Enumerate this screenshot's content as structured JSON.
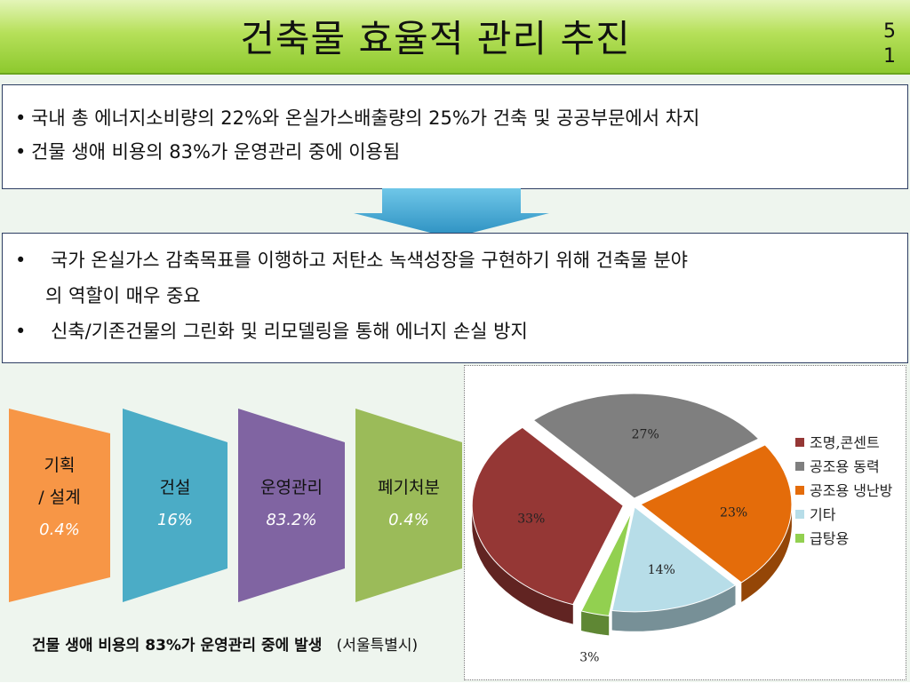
{
  "slide": {
    "title": "건축물 효율적 관리 추진",
    "page_number": "51"
  },
  "box1": {
    "lines": [
      "국내 총 에너지소비량의 22%와 온실가스배출량의 25%가 건축 및 공공부문에서 차지",
      "건물 생애 비용의 83%가 운영관리 중에 이용됨"
    ]
  },
  "box2": {
    "line1": "국가 온실가스 감축목표를 이행하고  저탄소 녹색성장을 구현하기 위해 건축물 분야",
    "line1_cont": "의  역할이 매우 중요",
    "line2": "신축/기존건물의 그린화 및 리모델링을 통해 에너지 손실 방지"
  },
  "phases": [
    {
      "name_line1": "기획",
      "name_line2": "/ 설계",
      "value": "0.4%",
      "color": "#f79646"
    },
    {
      "name_line1": "건설",
      "name_line2": "",
      "value": "16%",
      "color": "#4bacc6"
    },
    {
      "name_line1": "운영관리",
      "name_line2": "",
      "value": "83.2%",
      "color": "#8064a2"
    },
    {
      "name_line1": "폐기처분",
      "name_line2": "",
      "value": "0.4%",
      "color": "#9bbb59"
    }
  ],
  "caption": {
    "main": "건물 생애 비용의 83%가 운영관리 중에 발생",
    "source": "(서울특별시)"
  },
  "chart_data": {
    "type": "pie",
    "categories": [
      "조명,콘센트",
      "공조용 동력",
      "공조용 냉난방",
      "기타",
      "급탕용"
    ],
    "values": [
      33,
      27,
      23,
      14,
      3
    ],
    "labels": [
      "33%",
      "27%",
      "23%",
      "14%",
      "3%"
    ],
    "colors": [
      "#953735",
      "#7f7f7f",
      "#e46c0a",
      "#b7dde8",
      "#92d050"
    ],
    "legend_position": "right"
  }
}
